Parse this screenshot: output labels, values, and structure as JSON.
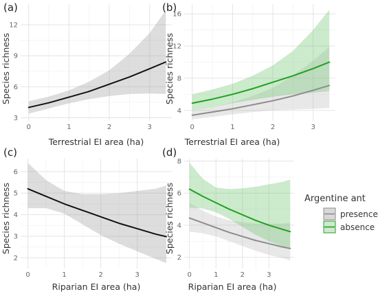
{
  "chart_data": [
    {
      "type": "line",
      "panel": "(a)",
      "xlabel": "Terrestrial EI area (ha)",
      "ylabel": "Species richness",
      "xlim": [
        -0.2,
        3.55
      ],
      "ylim": [
        2.7,
        14.0
      ],
      "xticks": [
        0,
        1,
        2,
        3
      ],
      "yticks": [
        3,
        6,
        9,
        12
      ],
      "grid": true,
      "series": [
        {
          "color": "#111111",
          "band_color": "#9e9e9e",
          "x": [
            0,
            0.5,
            1,
            1.5,
            2,
            2.5,
            3,
            3.4
          ],
          "y": [
            4.0,
            4.45,
            5.0,
            5.55,
            6.25,
            6.95,
            7.75,
            8.4
          ],
          "lower": [
            3.4,
            3.9,
            4.4,
            4.8,
            5.1,
            5.3,
            5.35,
            5.3
          ],
          "upper": [
            4.6,
            5.05,
            5.65,
            6.5,
            7.6,
            9.2,
            11.2,
            13.4
          ]
        }
      ]
    },
    {
      "type": "line",
      "panel": "(b)",
      "xlabel": "Terrestrial EI area (ha)",
      "ylabel": "Species richness",
      "xlim": [
        -0.2,
        3.55
      ],
      "ylim": [
        2.7,
        17.2
      ],
      "xticks": [
        0,
        1,
        2,
        3
      ],
      "yticks": [
        4,
        8,
        12,
        16
      ],
      "grid": true,
      "series": [
        {
          "name": "presence",
          "color": "#8c8c8c",
          "band_color": "#bdbdbd",
          "x": [
            0,
            0.5,
            1,
            1.5,
            2,
            2.5,
            3,
            3.4
          ],
          "y": [
            3.4,
            3.8,
            4.2,
            4.7,
            5.2,
            5.8,
            6.5,
            7.1
          ],
          "lower": [
            2.9,
            3.2,
            3.5,
            3.8,
            4.0,
            4.1,
            4.2,
            4.3
          ],
          "upper": [
            4.0,
            4.4,
            5.0,
            5.8,
            6.8,
            8.3,
            10.2,
            11.9
          ]
        },
        {
          "name": "absence",
          "color": "#1fa01f",
          "band_color": "#6cc46c",
          "x": [
            0,
            0.5,
            1,
            1.5,
            2,
            2.5,
            3,
            3.4
          ],
          "y": [
            4.9,
            5.4,
            6.0,
            6.7,
            7.5,
            8.3,
            9.2,
            10.0
          ],
          "lower": [
            4.0,
            4.4,
            4.9,
            5.3,
            5.7,
            6.0,
            6.2,
            6.4
          ],
          "upper": [
            6.0,
            6.6,
            7.3,
            8.3,
            9.6,
            11.4,
            14.0,
            16.5
          ]
        }
      ]
    },
    {
      "type": "line",
      "panel": "(c)",
      "xlabel": "Riparian EI area (ha)",
      "ylabel": "Species richness",
      "xlim": [
        -0.2,
        3.95
      ],
      "ylim": [
        1.5,
        6.6
      ],
      "xticks": [
        0,
        1,
        2,
        3
      ],
      "yticks": [
        2,
        3,
        4,
        5,
        6
      ],
      "grid": true,
      "series": [
        {
          "color": "#111111",
          "band_color": "#9e9e9e",
          "x": [
            0,
            0.5,
            1,
            1.5,
            2,
            2.5,
            3,
            3.5,
            3.8
          ],
          "y": [
            5.2,
            4.85,
            4.5,
            4.2,
            3.9,
            3.6,
            3.35,
            3.1,
            2.98
          ],
          "lower": [
            4.3,
            4.3,
            4.05,
            3.55,
            3.05,
            2.65,
            2.3,
            1.95,
            1.75
          ],
          "upper": [
            6.4,
            5.6,
            5.1,
            4.95,
            4.95,
            5.0,
            5.1,
            5.2,
            5.35
          ]
        }
      ]
    },
    {
      "type": "line",
      "panel": "(d)",
      "xlabel": "Riparian EI area (ha)",
      "ylabel": "Species richness",
      "xlim": [
        -0.2,
        3.95
      ],
      "ylim": [
        1.3,
        8.15
      ],
      "xticks": [
        0,
        1,
        2,
        3
      ],
      "yticks": [
        2,
        4,
        6,
        8
      ],
      "grid": true,
      "legend": {
        "title": "Argentine ant",
        "placement": "right",
        "entries": [
          "presence",
          "absence"
        ]
      },
      "series": [
        {
          "name": "presence",
          "color": "#8c8c8c",
          "band_color": "#bdbdbd",
          "x": [
            0,
            0.5,
            1,
            1.5,
            2,
            2.5,
            3,
            3.5,
            3.8
          ],
          "y": [
            4.45,
            4.15,
            3.85,
            3.55,
            3.3,
            3.05,
            2.85,
            2.65,
            2.55
          ],
          "lower": [
            3.6,
            3.5,
            3.3,
            3.0,
            2.7,
            2.4,
            2.15,
            1.95,
            1.8
          ],
          "upper": [
            5.4,
            4.9,
            4.55,
            4.3,
            4.2,
            4.1,
            4.1,
            4.1,
            4.15
          ]
        },
        {
          "name": "absence",
          "color": "#1fa01f",
          "band_color": "#6cc46c",
          "x": [
            0,
            0.5,
            1,
            1.5,
            2,
            2.5,
            3,
            3.5,
            3.8
          ],
          "y": [
            6.25,
            5.8,
            5.4,
            5.0,
            4.65,
            4.3,
            4.0,
            3.75,
            3.6
          ],
          "lower": [
            5.1,
            5.05,
            4.8,
            4.4,
            3.9,
            3.4,
            3.0,
            2.7,
            2.5
          ],
          "upper": [
            7.9,
            6.9,
            6.35,
            6.25,
            6.3,
            6.4,
            6.55,
            6.7,
            6.85
          ]
        }
      ]
    }
  ]
}
